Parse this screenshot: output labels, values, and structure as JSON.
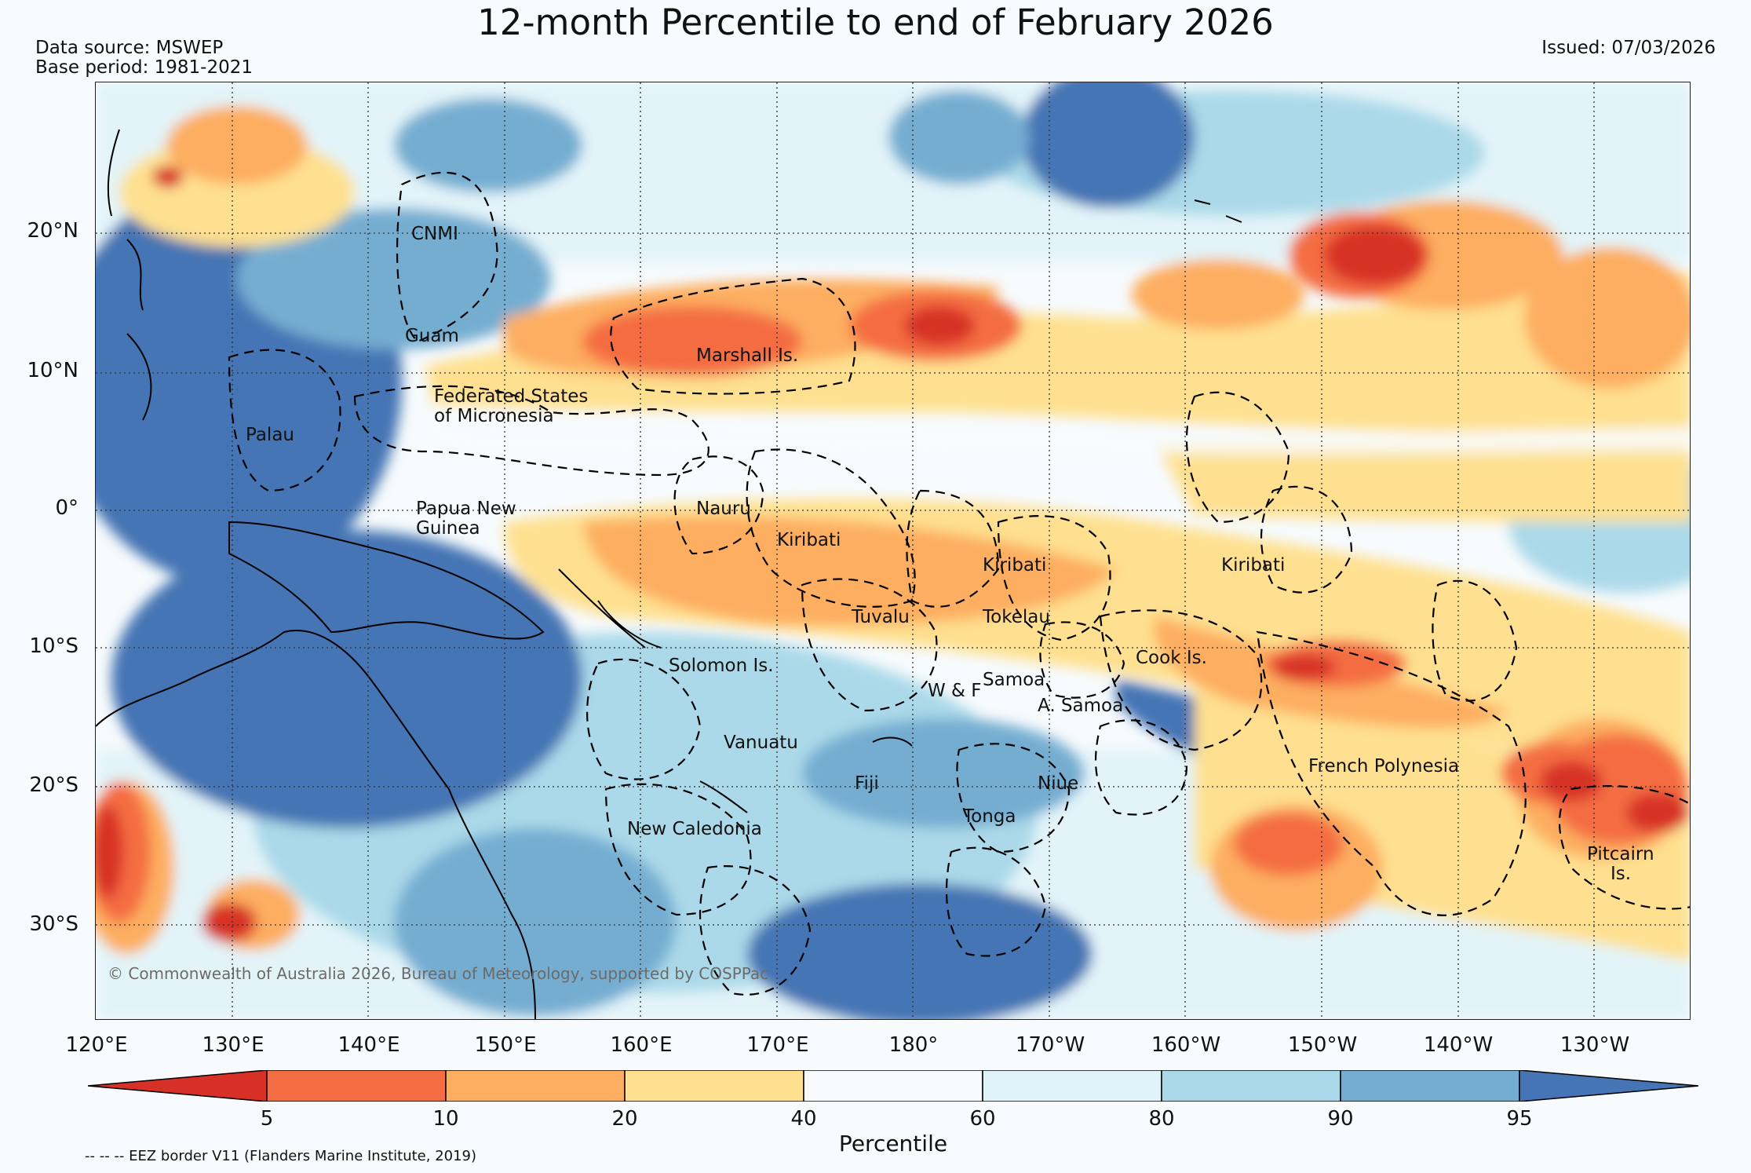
{
  "title": "12-month Percentile to end of February 2026",
  "data_source": "Data source: MSWEP",
  "base_period": "Base period: 1981-2021",
  "issued": "Issued: 07/03/2026",
  "copyright": "© Commonwealth of Australia 2026, Bureau of Meteorology, supported by COSPPac",
  "lat_labels": [
    "20°N",
    "10°N",
    "0°",
    "10°S",
    "20°S",
    "30°S"
  ],
  "lon_labels": [
    "120°E",
    "130°E",
    "140°E",
    "150°E",
    "160°E",
    "170°E",
    "180°",
    "170°W",
    "160°W",
    "150°W",
    "140°W",
    "130°W"
  ],
  "places": {
    "cnmi": "CNMI",
    "guam": "Guam",
    "marshall": "Marshall Is.",
    "fsm_1": "Federated States",
    "fsm_2": "of Micronesia",
    "palau": "Palau",
    "png_1": "Papua New",
    "png_2": "Guinea",
    "nauru": "Nauru",
    "kiribati_w": "Kiribati",
    "kiribati_c": "Kiribati",
    "kiribati_e": "Kiribati",
    "tuvalu": "Tuvalu",
    "tokelau": "Tokelau",
    "cook": "Cook Is.",
    "solomon": "Solomon Is.",
    "samoa": "Samoa",
    "wf": "W & F",
    "asamoa": "A. Samoa",
    "vanuatu": "Vanuatu",
    "fiji": "Fiji",
    "niue": "Niue",
    "french_poly": "French Polynesia",
    "tonga": "Tonga",
    "new_caledonia": "New Caledonia",
    "pitcairn_1": "Pitcairn",
    "pitcairn_2": "Is."
  },
  "colorbar": {
    "title": "Percentile",
    "ticks": [
      "5",
      "10",
      "20",
      "40",
      "60",
      "80",
      "90",
      "95"
    ],
    "colors": [
      "#d73027",
      "#f46d43",
      "#fdae61",
      "#fee090",
      "#f7fbfd",
      "#e0f3f8",
      "#abd9e9",
      "#74add1",
      "#4575b4"
    ]
  },
  "legend_eez": "-- -- -- EEZ border V11 (Flanders Marine Institute, 2019)"
}
